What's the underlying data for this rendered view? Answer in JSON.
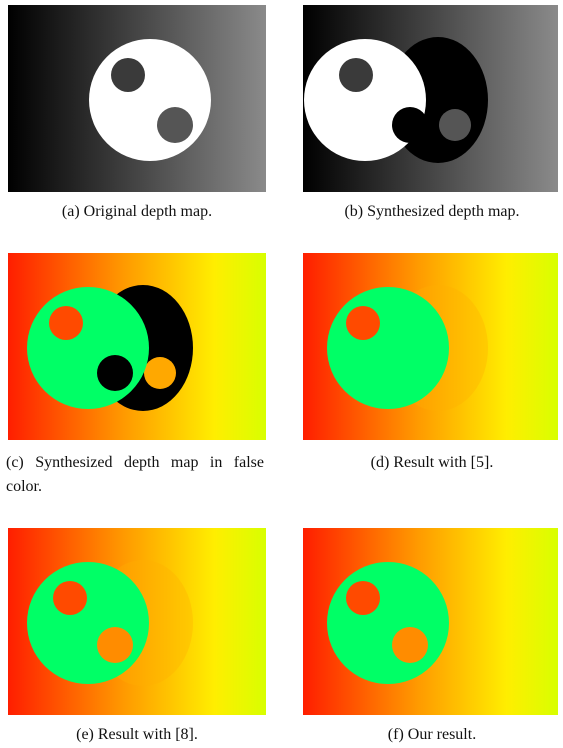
{
  "figure": {
    "subfigures": [
      {
        "caption": "(a) Original depth map."
      },
      {
        "caption": "(b) Synthesized depth map."
      },
      {
        "caption": "(c) Synthesized depth map in false color."
      },
      {
        "caption": "(d) Result with [5]."
      },
      {
        "caption": "(e) Result with [8]."
      },
      {
        "caption": "(f) Our result."
      }
    ]
  }
}
